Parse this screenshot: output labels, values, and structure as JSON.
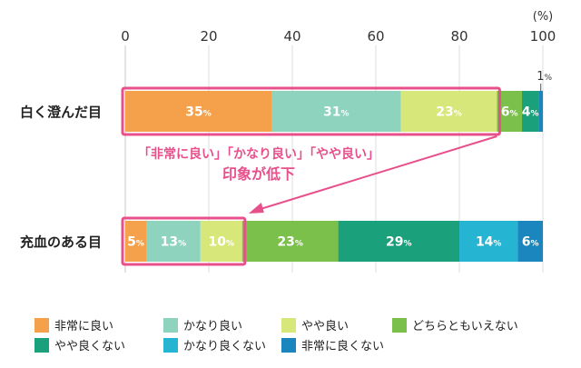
{
  "chart_data": {
    "type": "bar",
    "orientation": "horizontal-stacked",
    "unit_label": "(%)",
    "xlim": [
      0,
      100
    ],
    "xticks": [
      "0",
      "20",
      "40",
      "60",
      "80",
      "100"
    ],
    "categories": [
      "白く澄んだ目",
      "充血のある目"
    ],
    "series": [
      {
        "name": "非常に良い",
        "color": "#f5a04b",
        "values": [
          35,
          5
        ]
      },
      {
        "name": "かなり良い",
        "color": "#8dd3bd",
        "values": [
          31,
          13
        ]
      },
      {
        "name": "やや良い",
        "color": "#d7e77a",
        "values": [
          23,
          10
        ]
      },
      {
        "name": "どちらともいえない",
        "color": "#7ac04a",
        "values": [
          6,
          23
        ]
      },
      {
        "name": "やや良くない",
        "color": "#1aa07a",
        "values": [
          4,
          29
        ]
      },
      {
        "name": "かなり良くない",
        "color": "#25b5d2",
        "values": [
          0,
          14
        ]
      },
      {
        "name": "非常に良くない",
        "color": "#1a86bd",
        "values": [
          1,
          6
        ]
      }
    ],
    "data_labels": [
      [
        "35",
        "31",
        "23",
        "6",
        "4",
        "",
        "1"
      ],
      [
        "5",
        "13",
        "10",
        "23",
        "29",
        "14",
        "6"
      ]
    ],
    "pct_sign": "%",
    "annotation": {
      "line1": "「非常に良い」「かなり良い」「やや良い」",
      "line2": "印象が低下",
      "color": "#e8508c"
    },
    "grid": true,
    "legend_position": "bottom"
  }
}
